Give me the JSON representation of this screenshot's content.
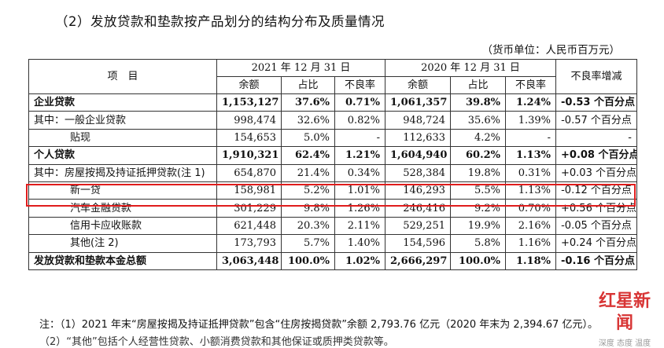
{
  "title": "（2）发放贷款和垫款按产品划分的结构分布及质量情况",
  "unit": "（货币单位：人民币百万元）",
  "header": {
    "item": "项　目",
    "period_2021": "2021 年 12 月 31 日",
    "period_2020": "2020 年 12 月 31 日",
    "balance": "余额",
    "share": "占比",
    "npl": "不良率",
    "npl_change": "不良率增减"
  },
  "rows": [
    {
      "label": "企业贷款",
      "b21": "1,153,127",
      "s21": "37.6%",
      "n21": "0.71%",
      "b20": "1,061,357",
      "s20": "39.8%",
      "n20": "1.24%",
      "chg": "-0.53 个百分点"
    },
    {
      "label": "其中：一般企业贷款",
      "b21": "998,474",
      "s21": "32.6%",
      "n21": "0.82%",
      "b20": "948,724",
      "s20": "35.6%",
      "n20": "1.39%",
      "chg": "-0.57 个百分点"
    },
    {
      "label": "贴现",
      "b21": "154,653",
      "s21": "5.0%",
      "n21": "-",
      "b20": "112,633",
      "s20": "4.2%",
      "n20": "-",
      "chg": "-"
    },
    {
      "label": "个人贷款",
      "b21": "1,910,321",
      "s21": "62.4%",
      "n21": "1.21%",
      "b20": "1,604,940",
      "s20": "60.2%",
      "n20": "1.13%",
      "chg": "+0.08 个百分点"
    },
    {
      "label": "其中：房屋按揭及持证抵押贷款(注 1)",
      "b21": "654,870",
      "s21": "21.4%",
      "n21": "0.34%",
      "b20": "528,384",
      "s20": "19.8%",
      "n20": "0.31%",
      "chg": "+0.03 个百分点"
    },
    {
      "label": "新一贷",
      "b21": "158,981",
      "s21": "5.2%",
      "n21": "1.01%",
      "b20": "146,293",
      "s20": "5.5%",
      "n20": "1.13%",
      "chg": "-0.12 个百分点"
    },
    {
      "label": "汽车金融贷款",
      "b21": "301,229",
      "s21": "9.8%",
      "n21": "1.26%",
      "b20": "246,416",
      "s20": "9.2%",
      "n20": "0.70%",
      "chg": "+0.56 个百分点"
    },
    {
      "label": "信用卡应收账款",
      "b21": "621,448",
      "s21": "20.3%",
      "n21": "2.11%",
      "b20": "529,251",
      "s20": "19.9%",
      "n20": "2.16%",
      "chg": "-0.05 个百分点"
    },
    {
      "label": "其他(注 2)",
      "b21": "173,793",
      "s21": "5.7%",
      "n21": "1.40%",
      "b20": "154,596",
      "s20": "5.8%",
      "n20": "1.16%",
      "chg": "+0.24 个百分点"
    },
    {
      "label": "发放贷款和垫款本金总额",
      "b21": "3,063,448",
      "s21": "100.0%",
      "n21": "1.02%",
      "b20": "2,666,297",
      "s20": "100.0%",
      "n20": "1.18%",
      "chg": "-0.16 个百分点"
    }
  ],
  "notes": {
    "note1": "注：（1）2021 年末“房屋按揭及持证抵押贷款”包含“住房按揭贷款”余额 2,793.76 亿元（2020 年末为 2,394.67 亿元）。",
    "note2": "（2）“其他”包括个人经营性贷款、小额消费贷款和其他保证或质押类贷款等。"
  },
  "watermark": {
    "logo": "红星新闻",
    "sub": "深度 态度 温度"
  },
  "colors": {
    "highlight": "#e01c1c",
    "border": "#333333"
  }
}
